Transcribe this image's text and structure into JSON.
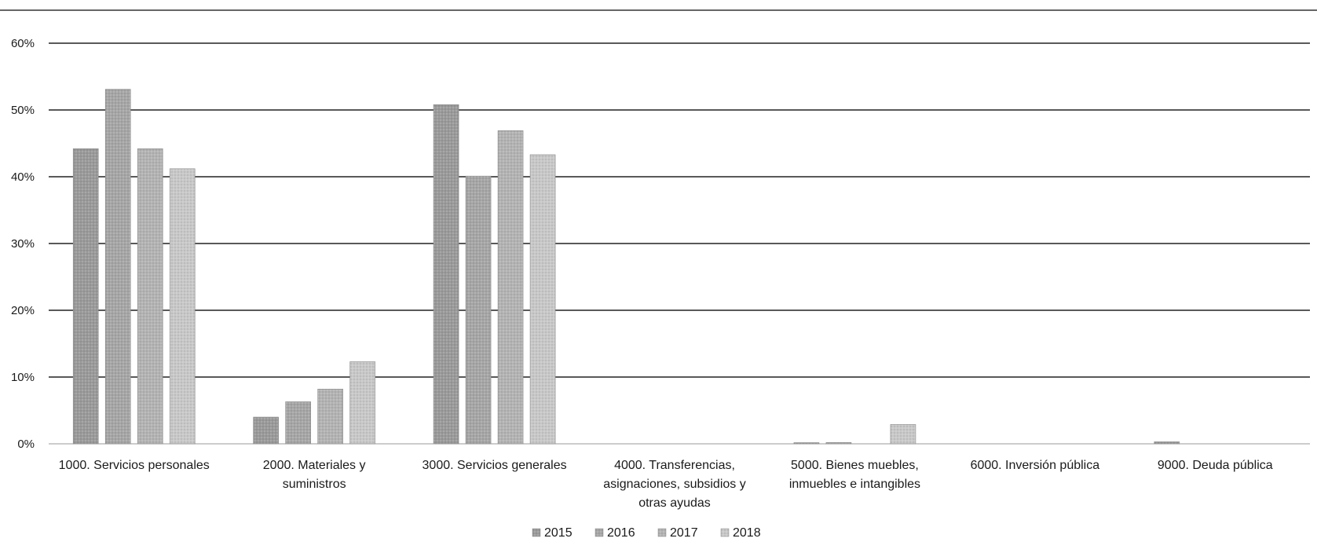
{
  "chart_data": {
    "type": "bar",
    "title": "",
    "xlabel": "",
    "ylabel": "",
    "ylim": [
      0,
      60
    ],
    "y_ticks": [
      "0%",
      "10%",
      "20%",
      "30%",
      "40%",
      "50%",
      "60%"
    ],
    "y_tick_values": [
      0,
      10,
      20,
      30,
      40,
      50,
      60
    ],
    "grid": true,
    "legend_position": "bottom",
    "categories": [
      [
        "1000. Servicios personales"
      ],
      [
        "2000. Materiales y",
        "suministros"
      ],
      [
        "3000. Servicios generales"
      ],
      [
        "4000. Transferencias,",
        "asignaciones, subsidios y",
        "otras ayudas"
      ],
      [
        "5000. Bienes muebles,",
        "inmuebles e intangibles"
      ],
      [
        "6000. Inversión pública"
      ],
      [
        "9000. Deuda pública"
      ]
    ],
    "series": [
      {
        "name": "2015",
        "color": "#9a9a9a",
        "values": [
          44.2,
          4.0,
          50.8,
          0,
          0.1,
          0,
          0.3
        ]
      },
      {
        "name": "2016",
        "color": "#a6a6a6",
        "values": [
          53.1,
          6.3,
          40.1,
          0,
          0.2,
          0,
          0
        ]
      },
      {
        "name": "2017",
        "color": "#b3b3b3",
        "values": [
          44.2,
          8.2,
          46.9,
          0,
          0,
          0,
          0
        ]
      },
      {
        "name": "2018",
        "color": "#c8c8c8",
        "values": [
          41.2,
          12.3,
          43.3,
          0,
          2.9,
          0,
          0
        ]
      }
    ]
  }
}
